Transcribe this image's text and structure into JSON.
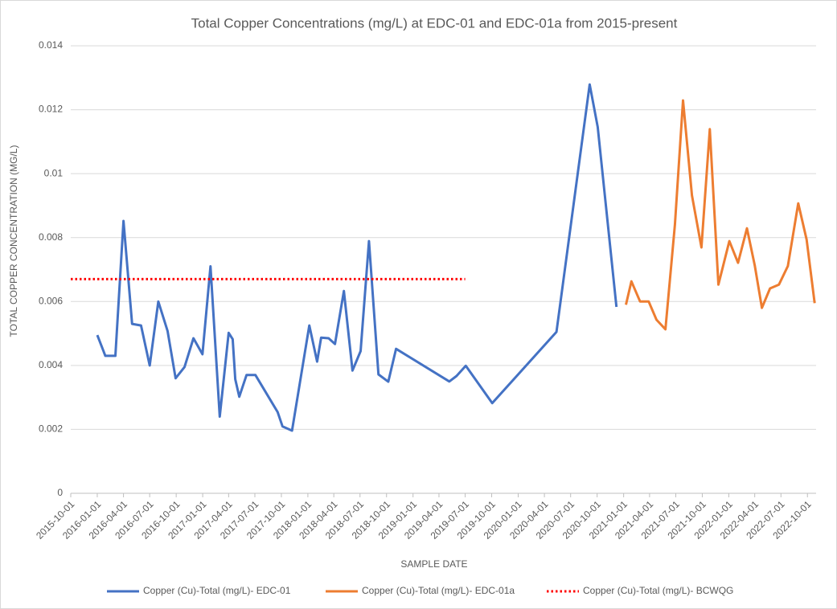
{
  "chart_data": {
    "type": "line",
    "title": "Total Copper Concentrations (mg/L) at EDC-01 and EDC-01a from 2015-present",
    "x_label": "SAMPLE DATE",
    "y_label": "TOTAL COPPER CONCENTRATION (MG/L)",
    "xlim": [
      "2015-10-01",
      "2022-10-31"
    ],
    "xticks": [
      "2015-10-01",
      "2016-01-01",
      "2016-04-01",
      "2016-07-01",
      "2016-10-01",
      "2017-01-01",
      "2017-04-01",
      "2017-07-01",
      "2017-10-01",
      "2018-01-01",
      "2018-04-01",
      "2018-07-01",
      "2018-10-01",
      "2019-01-01",
      "2019-04-01",
      "2019-07-01",
      "2019-10-01",
      "2020-01-01",
      "2020-04-01",
      "2020-07-01",
      "2020-10-01",
      "2021-01-01",
      "2021-04-01",
      "2021-07-01",
      "2021-10-01",
      "2022-01-01",
      "2022-04-01",
      "2022-07-01",
      "2022-10-01"
    ],
    "ylim": [
      0,
      0.014
    ],
    "yticks": [
      0,
      0.002,
      0.004,
      0.006,
      0.008,
      0.01,
      0.012,
      0.014
    ],
    "grid": true,
    "legend": "bottom",
    "series": [
      {
        "name": "Copper (Cu)-Total (mg/L)- EDC-01",
        "color": "#4472c4",
        "style": "solid",
        "x": [
          "2016-01-01",
          "2016-01-29",
          "2016-03-04",
          "2016-04-01",
          "2016-05-01",
          "2016-06-01",
          "2016-07-01",
          "2016-07-31",
          "2016-09-01",
          "2016-09-29",
          "2016-10-30",
          "2016-11-30",
          "2016-12-31",
          "2017-01-28",
          "2017-03-01",
          "2017-04-01",
          "2017-04-15",
          "2017-04-24",
          "2017-05-08",
          "2017-06-02",
          "2017-07-03",
          "2017-09-18",
          "2017-10-05",
          "2017-11-07",
          "2018-01-06",
          "2018-02-02",
          "2018-02-16",
          "2018-03-14",
          "2018-04-05",
          "2018-05-06",
          "2018-06-05",
          "2018-07-03",
          "2018-08-01",
          "2018-09-03",
          "2018-10-07",
          "2018-11-03",
          "2019-05-07",
          "2019-06-01",
          "2019-07-03",
          "2019-10-03",
          "2020-05-13",
          "2020-09-05",
          "2020-10-03",
          "2020-12-07"
        ],
        "values": [
          0.00495,
          0.0043,
          0.0043,
          0.00852,
          0.0053,
          0.00525,
          0.004,
          0.006,
          0.00508,
          0.0036,
          0.00395,
          0.00485,
          0.00435,
          0.0071,
          0.0024,
          0.00502,
          0.00482,
          0.00357,
          0.00302,
          0.0037,
          0.0037,
          0.00254,
          0.00209,
          0.00196,
          0.00525,
          0.00412,
          0.00487,
          0.00485,
          0.00467,
          0.00633,
          0.00384,
          0.00445,
          0.00789,
          0.00372,
          0.00349,
          0.00452,
          0.0035,
          0.00367,
          0.00399,
          0.00282,
          0.00505,
          0.01279,
          0.01146,
          0.00583
        ]
      },
      {
        "name": "Copper (Cu)-Total (mg/L)- EDC-01a",
        "color": "#ed7d31",
        "style": "solid",
        "x": [
          "2021-01-09",
          "2021-01-28",
          "2021-02-27",
          "2021-03-29",
          "2021-04-25",
          "2021-05-26",
          "2021-06-28",
          "2021-07-26",
          "2021-08-26",
          "2021-09-28",
          "2021-10-27",
          "2021-11-26",
          "2022-01-03",
          "2022-02-02",
          "2022-03-05",
          "2022-04-01",
          "2022-04-26",
          "2022-05-24",
          "2022-06-24",
          "2022-07-25",
          "2022-08-30",
          "2022-09-28",
          "2022-10-26"
        ],
        "values": [
          0.0059,
          0.00663,
          0.006,
          0.006,
          0.00543,
          0.00513,
          0.0084,
          0.01229,
          0.00932,
          0.00769,
          0.01139,
          0.00653,
          0.00789,
          0.00721,
          0.00829,
          0.00713,
          0.0058,
          0.00641,
          0.00653,
          0.00711,
          0.00907,
          0.00794,
          0.00595
        ]
      },
      {
        "name": "Copper (Cu)-Total (mg/L)- BCWQG",
        "color": "#ff0000",
        "style": "dotted",
        "x": [
          "2015-10-01",
          "2019-07-01"
        ],
        "values": [
          0.0067,
          0.0067
        ]
      }
    ]
  }
}
